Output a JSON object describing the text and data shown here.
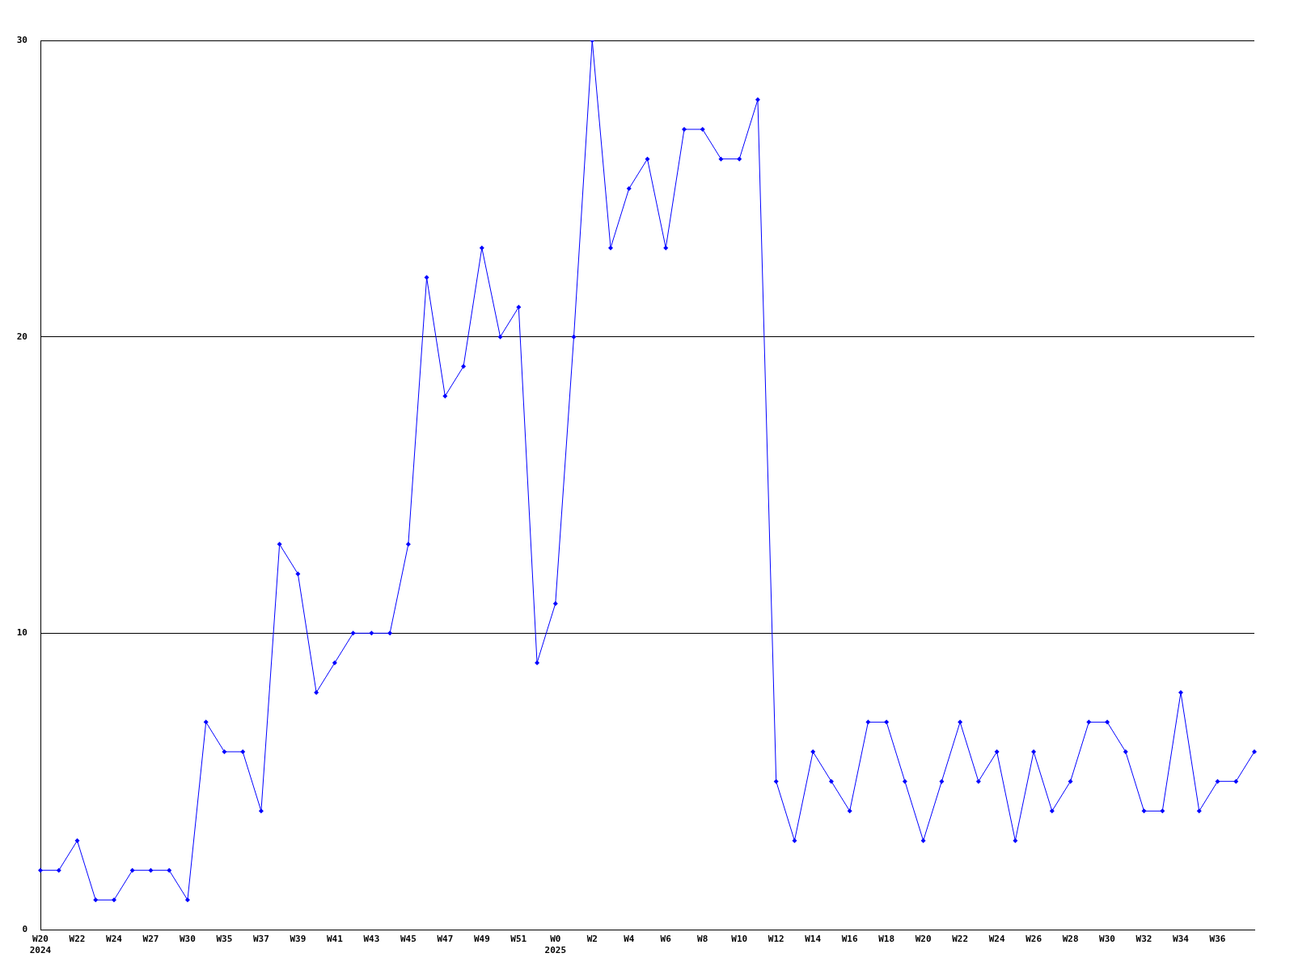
{
  "chart_data": {
    "type": "line",
    "categories": [
      "W20\n2024",
      null,
      "W22",
      null,
      "W24",
      null,
      "W27",
      null,
      "W30",
      null,
      "W35",
      null,
      "W37",
      null,
      "W39",
      null,
      "W41",
      null,
      "W43",
      null,
      "W45",
      null,
      "W47",
      null,
      "W49",
      null,
      "W51",
      null,
      "W0\n2025",
      null,
      "W2",
      null,
      "W4",
      null,
      "W6",
      null,
      "W8",
      null,
      "W10",
      null,
      "W12",
      null,
      "W14",
      null,
      "W16",
      null,
      "W18",
      null,
      "W20",
      null,
      "W22",
      null,
      "W24",
      null,
      "W26",
      null,
      "W28",
      null,
      "W30",
      null,
      "W32",
      null,
      "W34",
      null,
      "W36",
      null,
      null
    ],
    "values": [
      2,
      2,
      3,
      1,
      1,
      2,
      2,
      2,
      1,
      7,
      6,
      6,
      4,
      13,
      12,
      8,
      9,
      10,
      10,
      10,
      13,
      22,
      18,
      19,
      23,
      20,
      21,
      9,
      11,
      20,
      30,
      23,
      25,
      26,
      23,
      27,
      27,
      26,
      26,
      28,
      5,
      3,
      6,
      5,
      4,
      7,
      7,
      5,
      3,
      5,
      7,
      5,
      6,
      3,
      6,
      4,
      5,
      7,
      7,
      6,
      4,
      4,
      8,
      4,
      5,
      5,
      6
    ],
    "color": "#0000ff",
    "marker": "diamond",
    "ylim": [
      0,
      30
    ],
    "yticks": [
      0,
      10,
      20,
      30
    ],
    "grid": "y"
  }
}
